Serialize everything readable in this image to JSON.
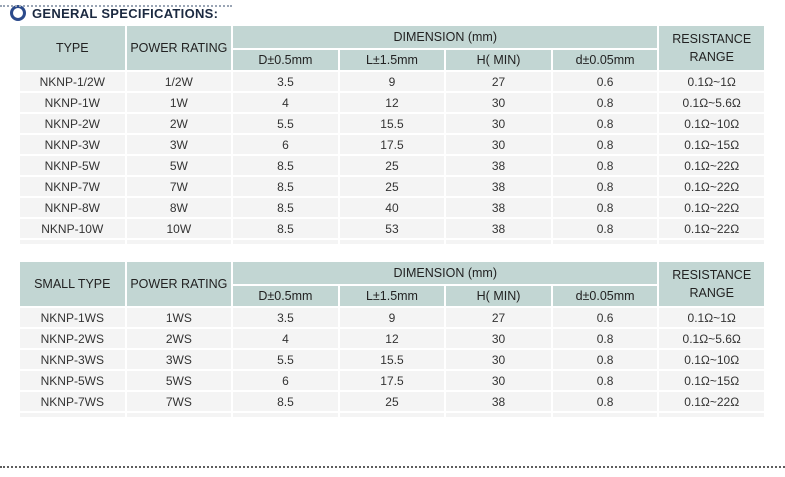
{
  "page": {
    "title": "GENERAL SPECIFICATIONS:",
    "colors": {
      "header_bg": "#c2d6d3",
      "row_bg": "#f4f4f4",
      "title_color": "#1b2940",
      "ring_color": "#2b4a8b",
      "data_text": "#333333"
    }
  },
  "tables": [
    {
      "headers": {
        "col1": "TYPE",
        "col2": "POWER RATING",
        "dimension": "DIMENSION (mm)",
        "resistance": "RESISTANCE RANGE"
      },
      "sub_headers": [
        "D±0.5mm",
        "L±1.5mm",
        "H( MIN)",
        "d±0.05mm"
      ],
      "rows": [
        [
          "NKNP-1/2W",
          "1/2W",
          "3.5",
          "9",
          "27",
          "0.6",
          "0.1Ω~1Ω"
        ],
        [
          "NKNP-1W",
          "1W",
          "4",
          "12",
          "30",
          "0.8",
          "0.1Ω~5.6Ω"
        ],
        [
          "NKNP-2W",
          "2W",
          "5.5",
          "15.5",
          "30",
          "0.8",
          "0.1Ω~10Ω"
        ],
        [
          "NKNP-3W",
          "3W",
          "6",
          "17.5",
          "30",
          "0.8",
          "0.1Ω~15Ω"
        ],
        [
          "NKNP-5W",
          "5W",
          "8.5",
          "25",
          "38",
          "0.8",
          "0.1Ω~22Ω"
        ],
        [
          "NKNP-7W",
          "7W",
          "8.5",
          "25",
          "38",
          "0.8",
          "0.1Ω~22Ω"
        ],
        [
          "NKNP-8W",
          "8W",
          "8.5",
          "40",
          "38",
          "0.8",
          "0.1Ω~22Ω"
        ],
        [
          "NKNP-10W",
          "10W",
          "8.5",
          "53",
          "38",
          "0.8",
          "0.1Ω~22Ω"
        ]
      ]
    },
    {
      "headers": {
        "col1": "SMALL TYPE",
        "col2": "POWER RATING",
        "dimension": "DIMENSION (mm)",
        "resistance": "RESISTANCE RANGE"
      },
      "sub_headers": [
        "D±0.5mm",
        "L±1.5mm",
        "H( MIN)",
        "d±0.05mm"
      ],
      "rows": [
        [
          "NKNP-1WS",
          "1WS",
          "3.5",
          "9",
          "27",
          "0.6",
          "0.1Ω~1Ω"
        ],
        [
          "NKNP-2WS",
          "2WS",
          "4",
          "12",
          "30",
          "0.8",
          "0.1Ω~5.6Ω"
        ],
        [
          "NKNP-3WS",
          "3WS",
          "5.5",
          "15.5",
          "30",
          "0.8",
          "0.1Ω~10Ω"
        ],
        [
          "NKNP-5WS",
          "5WS",
          "6",
          "17.5",
          "30",
          "0.8",
          "0.1Ω~15Ω"
        ],
        [
          "NKNP-7WS",
          "7WS",
          "8.5",
          "25",
          "38",
          "0.8",
          "0.1Ω~22Ω"
        ]
      ]
    }
  ]
}
